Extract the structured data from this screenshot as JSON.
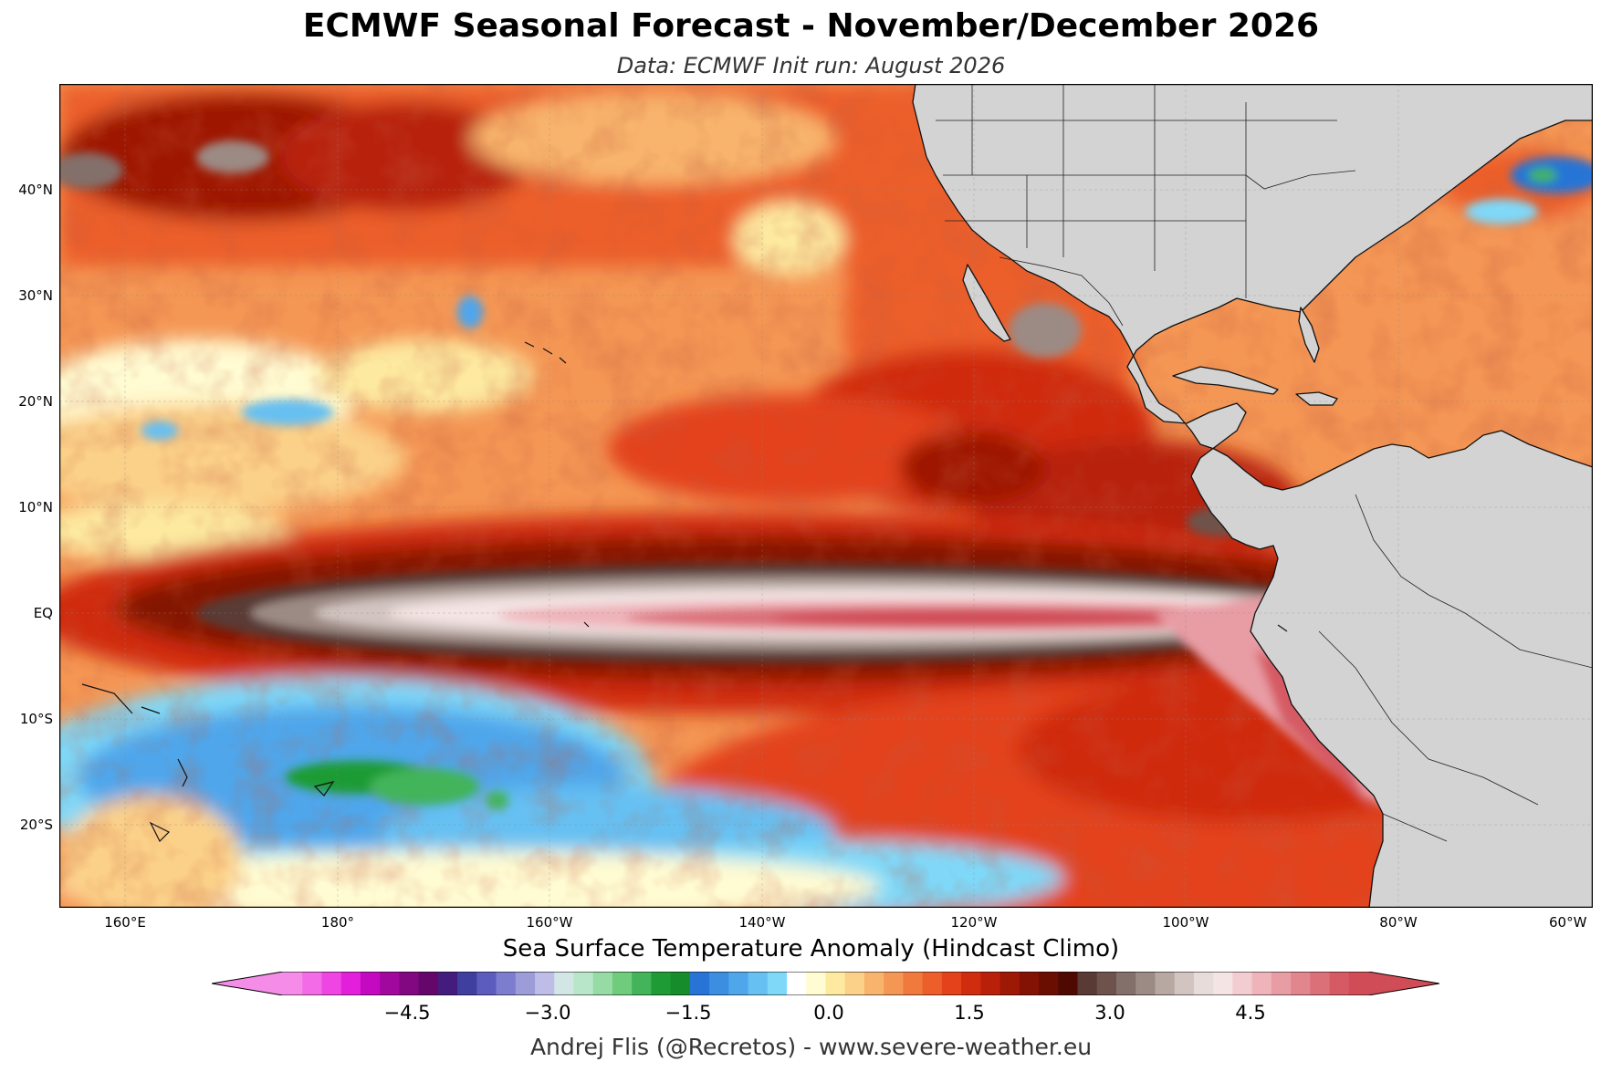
{
  "title": "ECMWF Seasonal Forecast - November/December 2026",
  "subtitle": "Data: ECMWF   Init run: August 2026",
  "map": {
    "region": "Pacific Ocean to Americas",
    "variable": "Sea Surface Temperature Anomaly",
    "lat_labels": [
      "40°N",
      "30°N",
      "20°N",
      "10°N",
      "EQ",
      "10°S",
      "20°S"
    ],
    "lon_labels": [
      "160°E",
      "180°",
      "160°W",
      "140°W",
      "120°W",
      "100°W",
      "80°W",
      "60°W"
    ],
    "land_color": "#d3d3d3"
  },
  "colorbar": {
    "title": "Sea Surface Temperature Anomaly (Hindcast Climo)",
    "ticks": [
      "−4.5",
      "−3.0",
      "−1.5",
      "0.0",
      "1.5",
      "3.0",
      "4.5"
    ],
    "range": [
      -6.0,
      6.0
    ],
    "colors": [
      "#f48ce8",
      "#f36be6",
      "#ef46e3",
      "#e31fdc",
      "#c30ac0",
      "#a1089e",
      "#820881",
      "#64066a",
      "#441c7e",
      "#3f3f9f",
      "#5c5cbf",
      "#7d7dcf",
      "#9c9cd9",
      "#bdbde8",
      "#d2e6e6",
      "#b8e6c8",
      "#96dba4",
      "#6fcc7c",
      "#43b45a",
      "#1e9b34",
      "#168c2a",
      "#2874d6",
      "#3b8ee0",
      "#4fa6ea",
      "#66c0f2",
      "#7fd8f8",
      "#ffffff",
      "#fffbd2",
      "#fde9a0",
      "#fbd088",
      "#f8b46c",
      "#f49654",
      "#f07a3e",
      "#ec5e2a",
      "#e3421a",
      "#d02c0e",
      "#b8200a",
      "#9e1806",
      "#841204",
      "#6a0e02",
      "#4e0a02",
      "#5a3a34",
      "#6e524c",
      "#84706a",
      "#9c8a84",
      "#b8a8a2",
      "#d2c4c0",
      "#e8dcda",
      "#f4e4e4",
      "#f2ccd0",
      "#eeb4ba",
      "#e89ca4",
      "#e2868e",
      "#dc7078",
      "#d65a64",
      "#d04c56"
    ]
  },
  "credit": "Andrej Flis (@Recretos) - www.severe-weather.eu"
}
